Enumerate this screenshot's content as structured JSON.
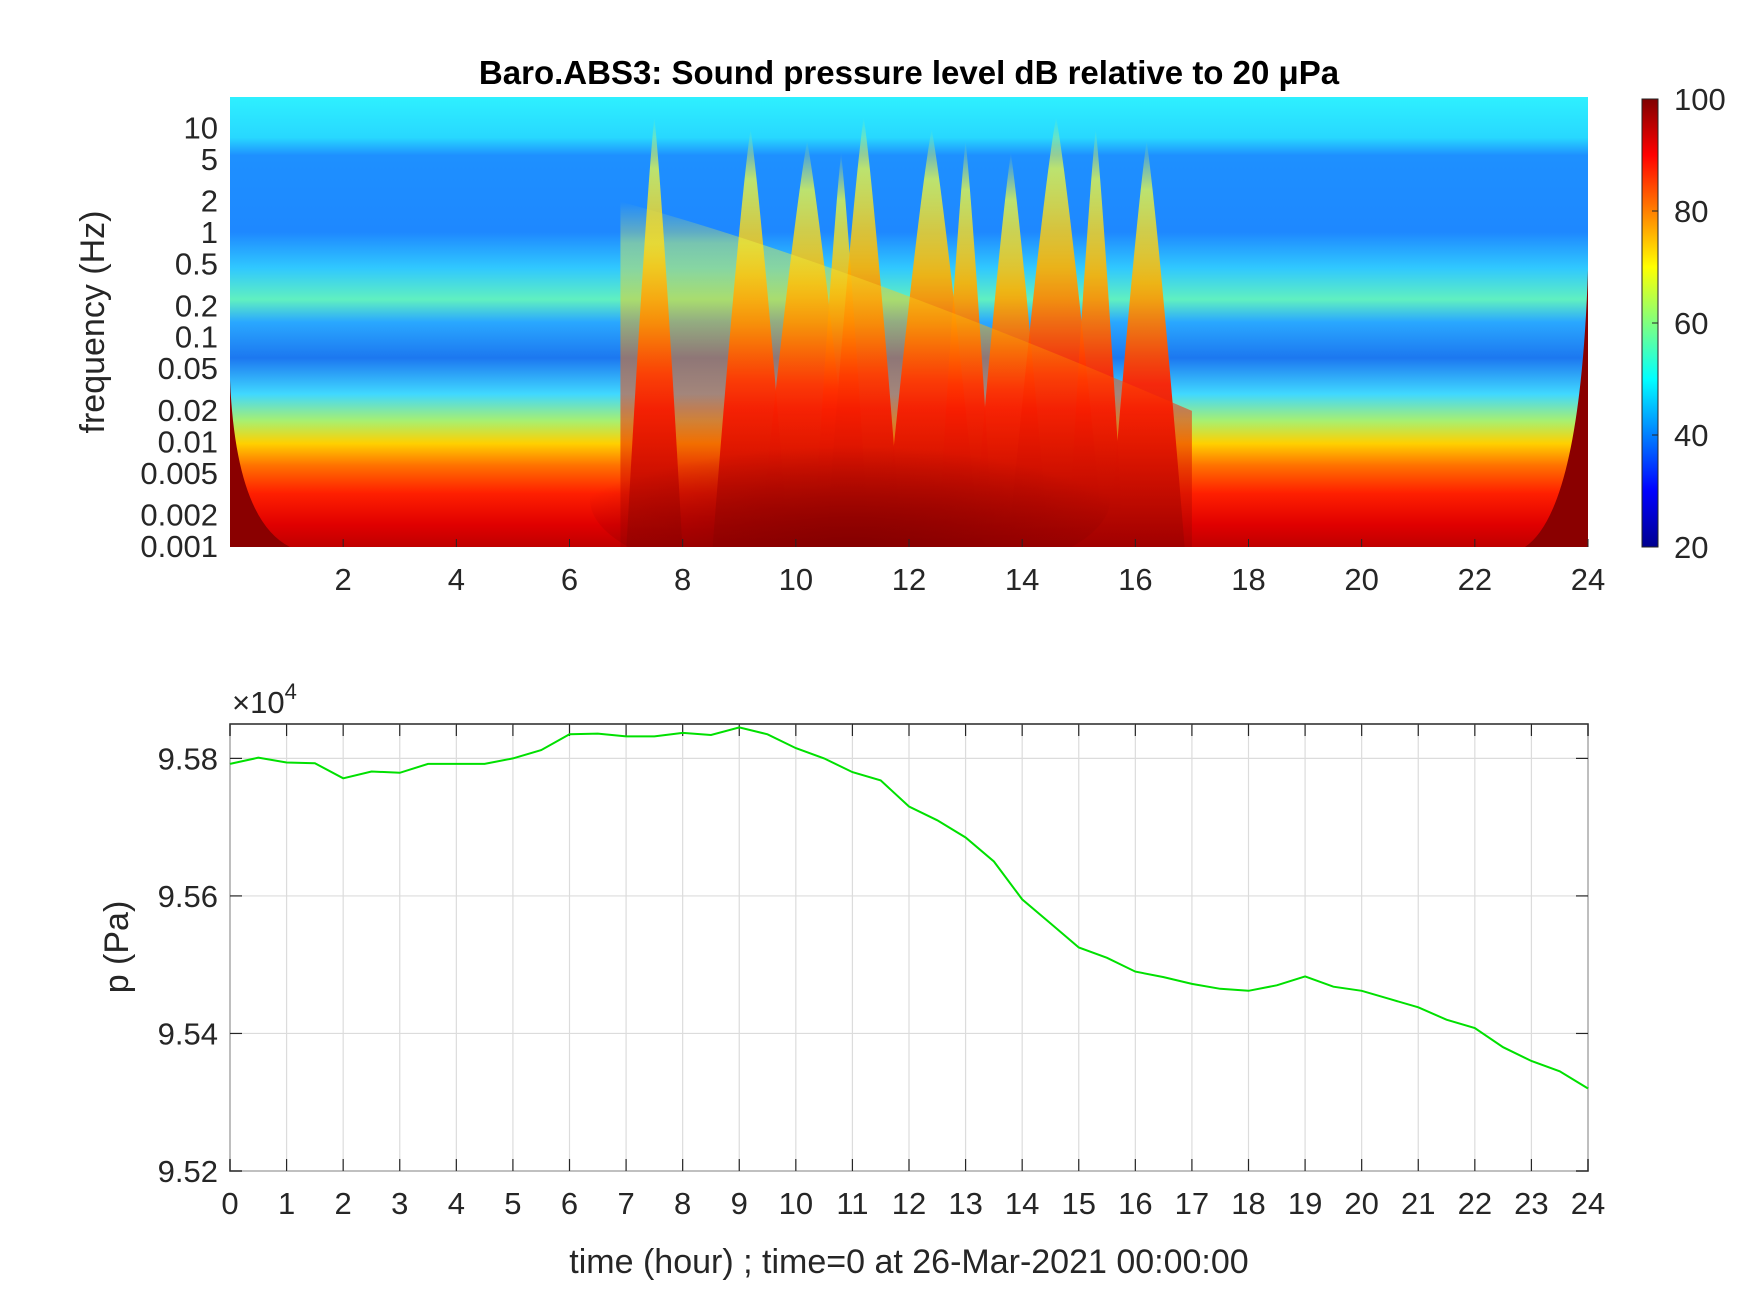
{
  "chart_data": [
    {
      "type": "heatmap",
      "title": "Baro.ABS3: Sound pressure level dB relative to 20 μPa",
      "ylabel": "frequency (Hz)",
      "xlabel": "",
      "x_ticks": [
        "2",
        "4",
        "6",
        "8",
        "10",
        "12",
        "14",
        "16",
        "18",
        "20",
        "22",
        "24"
      ],
      "x_tick_values": [
        2,
        4,
        6,
        8,
        10,
        12,
        14,
        16,
        18,
        20,
        22,
        24
      ],
      "xlim": [
        0,
        24
      ],
      "y_scale": "log",
      "ylim": [
        0.001,
        20
      ],
      "y_ticks": [
        "10",
        "5",
        "2",
        "1",
        "0.5",
        "0.2",
        "0.1",
        "0.05",
        "0.02",
        "0.01",
        "0.005",
        "0.002",
        "0.001"
      ],
      "y_tick_values": [
        10,
        5,
        2,
        1,
        0.5,
        0.2,
        0.1,
        0.05,
        0.02,
        0.01,
        0.005,
        0.002,
        0.001
      ],
      "colorbar": {
        "colormap": "jet",
        "range": [
          20,
          100
        ],
        "ticks": [
          "100",
          "80",
          "60",
          "40",
          "20"
        ],
        "tick_values": [
          100,
          80,
          60,
          40,
          20
        ]
      },
      "activity_bursts_hours": [
        7.5,
        9.2,
        10.2,
        10.8,
        11.2,
        12.4,
        13.0,
        13.8,
        14.6,
        15.3,
        16.2
      ]
    },
    {
      "type": "line",
      "ylabel": "p (Pa)",
      "xlabel": "time (hour) ; time=0 at 26-Mar-2021 00:00:00",
      "exponent_label": "×10",
      "exponent_power": "4",
      "xlim": [
        0,
        24
      ],
      "ylim": [
        9.52,
        9.585
      ],
      "grid": true,
      "x_ticks": [
        "0",
        "1",
        "2",
        "3",
        "4",
        "5",
        "6",
        "7",
        "8",
        "9",
        "10",
        "11",
        "12",
        "13",
        "14",
        "15",
        "16",
        "17",
        "18",
        "19",
        "20",
        "21",
        "22",
        "23",
        "24"
      ],
      "x_tick_values": [
        0,
        1,
        2,
        3,
        4,
        5,
        6,
        7,
        8,
        9,
        10,
        11,
        12,
        13,
        14,
        15,
        16,
        17,
        18,
        19,
        20,
        21,
        22,
        23,
        24
      ],
      "y_ticks": [
        "9.52",
        "9.54",
        "9.56",
        "9.58"
      ],
      "y_tick_values": [
        9.52,
        9.54,
        9.56,
        9.58
      ],
      "series": [
        {
          "color": "#00e000",
          "x": [
            0,
            0.5,
            1,
            1.5,
            2,
            2.5,
            3,
            3.5,
            4,
            4.5,
            5,
            5.5,
            6,
            6.5,
            7,
            7.5,
            8,
            8.5,
            9,
            9.5,
            10,
            10.5,
            11,
            11.5,
            12,
            12.5,
            13,
            13.5,
            14,
            14.5,
            15,
            15.5,
            16,
            16.5,
            17,
            17.5,
            18,
            18.5,
            19,
            19.5,
            20,
            20.5,
            21,
            21.5,
            22,
            22.5,
            23,
            23.5,
            24
          ],
          "y": [
            9.5792,
            9.5801,
            9.5794,
            9.5793,
            9.5771,
            9.5781,
            9.5779,
            9.5792,
            9.5792,
            9.5792,
            9.58,
            9.5812,
            9.5835,
            9.5836,
            9.5832,
            9.5832,
            9.5837,
            9.5834,
            9.5845,
            9.5835,
            9.5815,
            9.58,
            9.578,
            9.5768,
            9.573,
            9.571,
            9.5685,
            9.565,
            9.5595,
            9.556,
            9.5525,
            9.551,
            9.549,
            9.5482,
            9.5472,
            9.5465,
            9.5462,
            9.547,
            9.5483,
            9.5468,
            9.5462,
            9.545,
            9.5438,
            9.542,
            9.5408,
            9.538,
            9.536,
            9.5345,
            9.532
          ]
        }
      ]
    }
  ]
}
